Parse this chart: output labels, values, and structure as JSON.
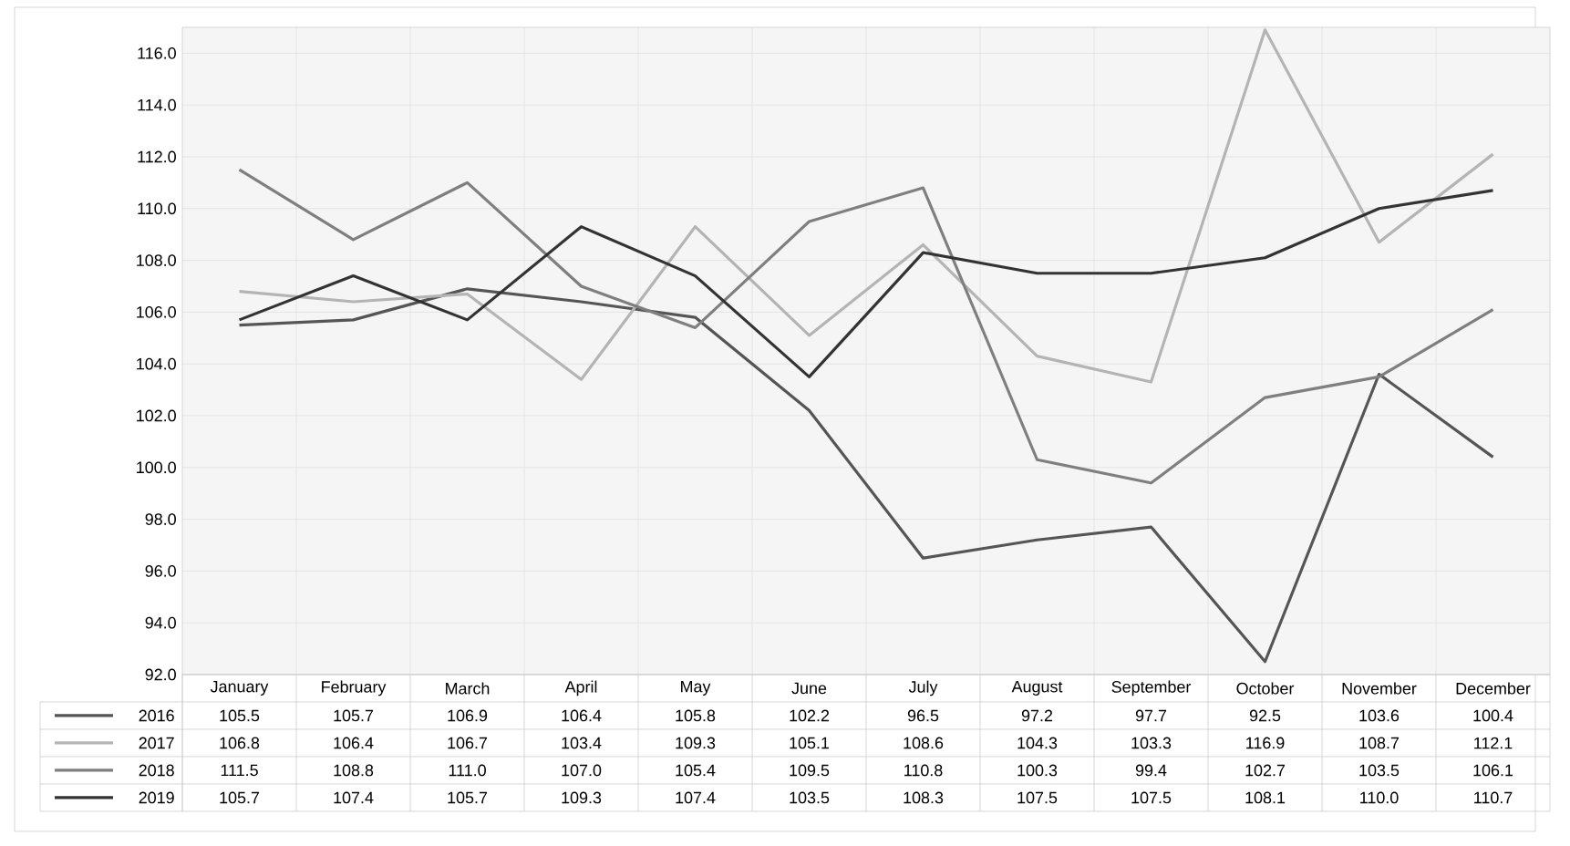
{
  "chart_data": {
    "type": "line",
    "categories": [
      "January",
      "February",
      "March",
      "April",
      "May",
      "June",
      "July",
      "August",
      "September",
      "October",
      "November",
      "December"
    ],
    "series": [
      {
        "name": "2016",
        "color": "#555555",
        "values": [
          105.5,
          105.7,
          106.9,
          106.4,
          105.8,
          102.2,
          96.5,
          97.2,
          97.7,
          92.5,
          103.6,
          100.4
        ],
        "value_labels": [
          "105.5",
          "105.7",
          "106.9",
          "106.4",
          "105.8",
          "102.2",
          "96.5",
          "97.2",
          "97.7",
          "92.5",
          "103.6",
          "100.4"
        ]
      },
      {
        "name": "2017",
        "color": "#b4b4b4",
        "values": [
          106.8,
          106.4,
          106.7,
          103.4,
          109.3,
          105.1,
          108.6,
          104.3,
          103.3,
          116.9,
          108.7,
          112.1
        ],
        "value_labels": [
          "106.8",
          "106.4",
          "106.7",
          "103.4",
          "109.3",
          "105.1",
          "108.6",
          "104.3",
          "103.3",
          "116.9",
          "108.7",
          "112.1"
        ]
      },
      {
        "name": "2018",
        "color": "#7f7f7f",
        "values": [
          111.5,
          108.8,
          111.0,
          107.0,
          105.4,
          109.5,
          110.8,
          100.3,
          99.4,
          102.7,
          103.5,
          106.1
        ],
        "value_labels": [
          "111.5",
          "108.8",
          "111.0",
          "107.0",
          "105.4",
          "109.5",
          "110.8",
          "100.3",
          "99.4",
          "102.7",
          "103.5",
          "106.1"
        ]
      },
      {
        "name": "2019",
        "color": "#333333",
        "values": [
          105.7,
          107.4,
          105.7,
          109.3,
          107.4,
          103.5,
          108.3,
          107.5,
          107.5,
          108.1,
          110.0,
          110.7
        ],
        "value_labels": [
          "105.7",
          "107.4",
          "105.7",
          "109.3",
          "107.4",
          "103.5",
          "108.3",
          "107.5",
          "107.5",
          "108.1",
          "110.0",
          "110.7"
        ]
      }
    ],
    "ylim": [
      92,
      117
    ],
    "yticks": [
      {
        "value": 92,
        "label": "92.0"
      },
      {
        "value": 94,
        "label": "94.0"
      },
      {
        "value": 96,
        "label": "96.0"
      },
      {
        "value": 98,
        "label": "98.0"
      },
      {
        "value": 100,
        "label": "100.0"
      },
      {
        "value": 102,
        "label": "102.0"
      },
      {
        "value": 104,
        "label": "104.0"
      },
      {
        "value": 106,
        "label": "106.0"
      },
      {
        "value": 108,
        "label": "108.0"
      },
      {
        "value": 110,
        "label": "110.0"
      },
      {
        "value": 112,
        "label": "112.0"
      },
      {
        "value": 114,
        "label": "114.0"
      },
      {
        "value": 116,
        "label": "116.0"
      }
    ],
    "grid": true,
    "legend": "bottom",
    "marker": "none",
    "line_style": "solid"
  }
}
